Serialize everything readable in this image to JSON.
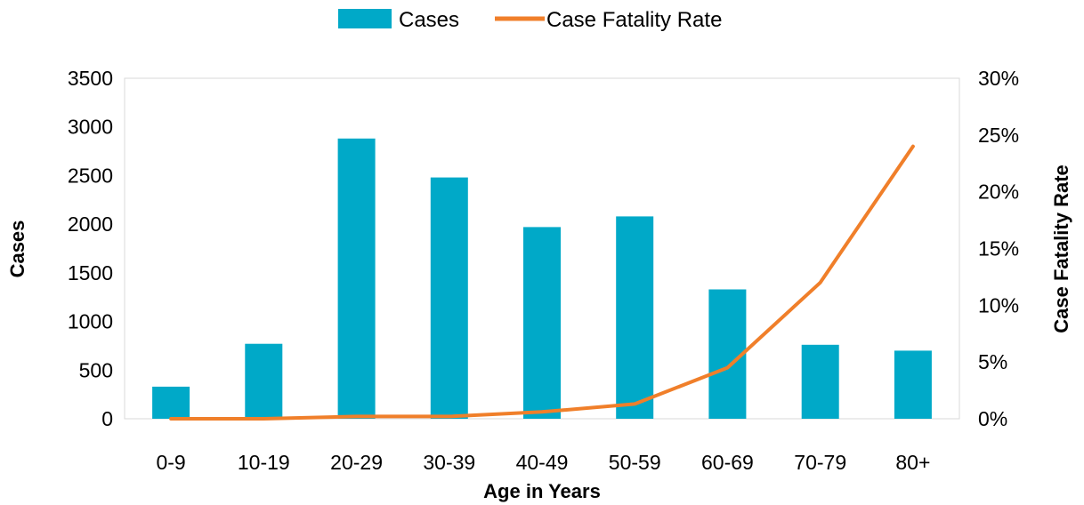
{
  "chart_data": {
    "type": "bar",
    "title": "",
    "xlabel": "Age in Years",
    "ylabel": "Cases",
    "y2label": "Case Fatality Rate",
    "categories": [
      "0-9",
      "10-19",
      "20-29",
      "30-39",
      "40-49",
      "50-59",
      "60-69",
      "70-79",
      "80+"
    ],
    "ylim": [
      0,
      3500
    ],
    "y_ticks": [
      "0",
      "500",
      "1000",
      "1500",
      "2000",
      "2500",
      "3000",
      "3500"
    ],
    "y2lim": [
      0,
      0.3
    ],
    "y2_ticks": [
      "0%",
      "5%",
      "10%",
      "15%",
      "20%",
      "25%",
      "30%"
    ],
    "legend_position": "top-center",
    "grid": false,
    "series": [
      {
        "name": "Cases",
        "type": "bar",
        "axis": "left",
        "color": "#00a9c8",
        "values": [
          330,
          770,
          2880,
          2480,
          1970,
          2080,
          1330,
          760,
          700
        ]
      },
      {
        "name": "Case Fatality Rate",
        "type": "line",
        "axis": "right",
        "color": "#f07f2a",
        "values": [
          0.0,
          0.0,
          0.002,
          0.002,
          0.006,
          0.013,
          0.045,
          0.12,
          0.24
        ]
      }
    ]
  }
}
